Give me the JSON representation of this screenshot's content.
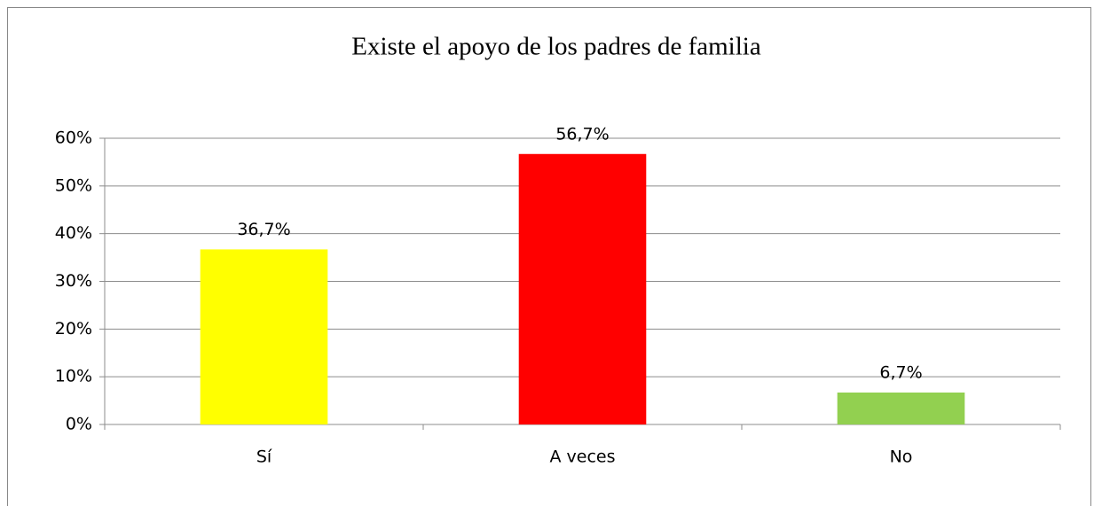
{
  "chart_data": {
    "type": "bar",
    "title": "Existe el apoyo de los padres de familia",
    "categories": [
      "Sí",
      "A veces",
      "No"
    ],
    "values": [
      36.7,
      56.7,
      6.7
    ],
    "value_labels": [
      "36,7%",
      "56,7%",
      "6,7%"
    ],
    "colors": [
      "#ffff00",
      "#ff0000",
      "#92d050"
    ],
    "ylim": [
      0,
      60
    ],
    "yticks": [
      {
        "value": 0,
        "label": "0%"
      },
      {
        "value": 10,
        "label": "10%"
      },
      {
        "value": 20,
        "label": "20%"
      },
      {
        "value": 30,
        "label": "30%"
      },
      {
        "value": 40,
        "label": "40%"
      },
      {
        "value": 50,
        "label": "50%"
      },
      {
        "value": 60,
        "label": "60%"
      }
    ],
    "grid": true
  }
}
